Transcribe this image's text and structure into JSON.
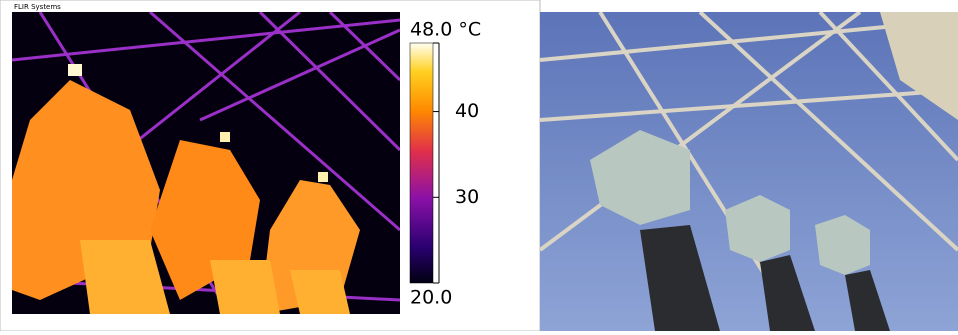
{
  "brand": "FLIR Systems",
  "colorbar": {
    "min": {
      "value": 20,
      "label": "20.0"
    },
    "max": {
      "value": 48,
      "label": "48.0 °C"
    },
    "ticks": [
      40,
      30
    ]
  }
}
